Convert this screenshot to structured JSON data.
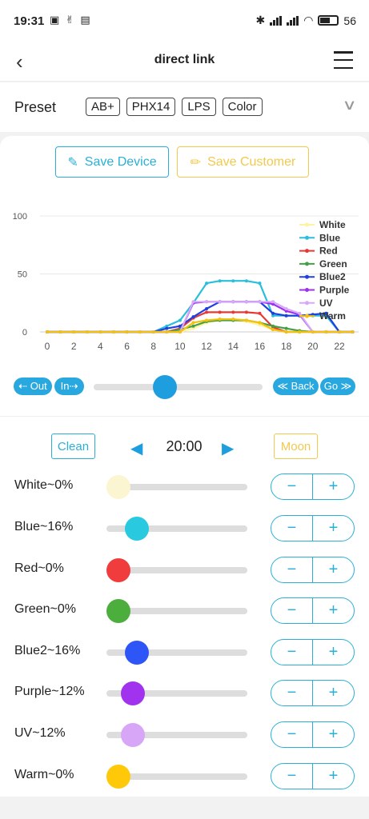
{
  "status": {
    "time": "19:31",
    "battery": "56"
  },
  "nav": {
    "title": "direct link"
  },
  "preset": {
    "label": "Preset",
    "options": [
      "AB+",
      "PHX14",
      "LPS",
      "Color"
    ]
  },
  "actions": {
    "save_device": "Save Device",
    "save_customer": "Save Customer"
  },
  "chart_data": {
    "type": "line",
    "x": [
      0,
      1,
      2,
      3,
      4,
      5,
      6,
      7,
      8,
      9,
      10,
      11,
      12,
      13,
      14,
      15,
      16,
      17,
      18,
      19,
      20,
      21,
      22,
      23
    ],
    "xticks": [
      "0",
      "2",
      "4",
      "6",
      "8",
      "10",
      "12",
      "14",
      "16",
      "18",
      "20",
      "22"
    ],
    "yticks": [
      "0",
      "50",
      "100"
    ],
    "ylim": [
      0,
      100
    ],
    "xlim": [
      0,
      23
    ],
    "legend_position": "top-right",
    "series": [
      {
        "name": "White",
        "color": "#fff3a0",
        "values": [
          0,
          0,
          0,
          0,
          0,
          0,
          0,
          0,
          0,
          0,
          0,
          3,
          8,
          10,
          10,
          9,
          6,
          2,
          0,
          0,
          0,
          0,
          0,
          0
        ]
      },
      {
        "name": "Blue",
        "color": "#29bfdc",
        "values": [
          0,
          0,
          0,
          0,
          0,
          0,
          0,
          0,
          0,
          5,
          10,
          25,
          42,
          44,
          44,
          44,
          42,
          14,
          14,
          14,
          14,
          14,
          0,
          0
        ]
      },
      {
        "name": "Red",
        "color": "#e53935",
        "values": [
          0,
          0,
          0,
          0,
          0,
          0,
          0,
          0,
          0,
          0,
          3,
          12,
          17,
          17,
          17,
          17,
          16,
          4,
          0,
          0,
          0,
          0,
          0,
          0
        ]
      },
      {
        "name": "Green",
        "color": "#43a047",
        "values": [
          0,
          0,
          0,
          0,
          0,
          0,
          0,
          0,
          0,
          0,
          2,
          5,
          9,
          10,
          10,
          10,
          8,
          5,
          3,
          1,
          0,
          0,
          0,
          0
        ]
      },
      {
        "name": "Blue2",
        "color": "#1e40e0",
        "values": [
          0,
          0,
          0,
          0,
          0,
          0,
          0,
          0,
          0,
          3,
          5,
          13,
          20,
          26,
          26,
          26,
          26,
          16,
          14,
          14,
          15,
          16,
          0,
          0
        ]
      },
      {
        "name": "Purple",
        "color": "#9b30ef",
        "values": [
          0,
          0,
          0,
          0,
          0,
          0,
          0,
          0,
          0,
          0,
          0,
          25,
          26,
          26,
          26,
          26,
          26,
          24,
          18,
          15,
          0,
          0,
          0,
          0
        ]
      },
      {
        "name": "UV",
        "color": "#d8a8f8",
        "values": [
          0,
          0,
          0,
          0,
          0,
          0,
          0,
          0,
          0,
          0,
          0,
          26,
          26,
          26,
          26,
          26,
          26,
          26,
          20,
          16,
          0,
          0,
          0,
          0
        ]
      },
      {
        "name": "Warm",
        "color": "#f4c20d",
        "values": [
          0,
          0,
          0,
          0,
          0,
          0,
          0,
          0,
          0,
          0,
          0,
          8,
          10,
          11,
          11,
          10,
          8,
          2,
          0,
          0,
          0,
          0,
          0,
          0
        ]
      }
    ]
  },
  "timeline": {
    "out_label": "⇠ Out",
    "in_label": "In⇢",
    "back_label": "≪ Back",
    "go_label": "Go ≫",
    "position": 0.42
  },
  "schedule": {
    "clean_label": "Clean",
    "moon_label": "Moon",
    "time": "20:00"
  },
  "channels": [
    {
      "label": "White~0%",
      "color": "#fbf5d2",
      "value": 0
    },
    {
      "label": "Blue~16%",
      "color": "#29c9e0",
      "value": 16
    },
    {
      "label": "Red~0%",
      "color": "#f03c3c",
      "value": 0
    },
    {
      "label": "Green~0%",
      "color": "#4caf3d",
      "value": 0
    },
    {
      "label": "Blue2~16%",
      "color": "#2e55f5",
      "value": 16
    },
    {
      "label": "Purple~12%",
      "color": "#a133ef",
      "value": 12
    },
    {
      "label": "UV~12%",
      "color": "#d8a6f7",
      "value": 12
    },
    {
      "label": "Warm~0%",
      "color": "#ffc90a",
      "value": 0
    }
  ],
  "stepper": {
    "minus": "−",
    "plus": "+"
  }
}
